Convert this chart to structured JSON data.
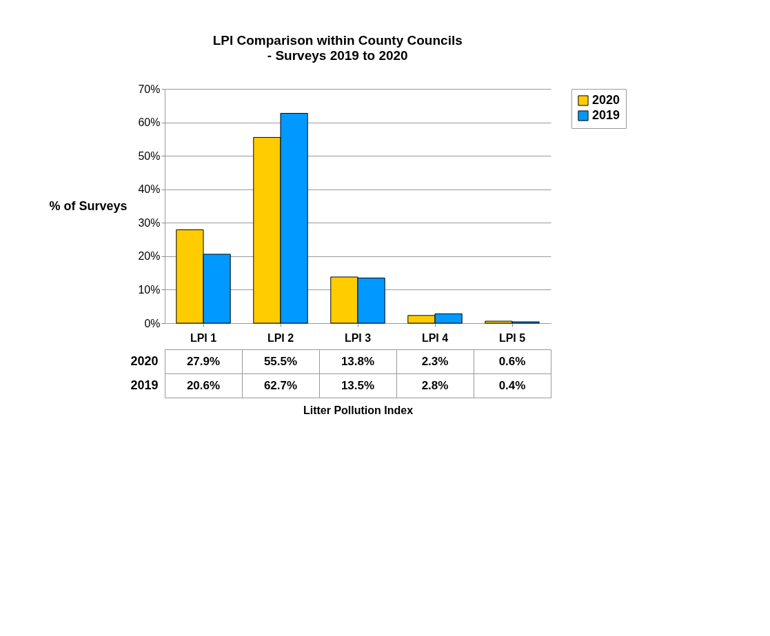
{
  "chart_data": {
    "type": "bar",
    "title": "LPI Comparison within County Councils",
    "subtitle": "- Surveys 2019 to 2020",
    "annotations": [
      "Litter Pollution Index"
    ],
    "ylabel": "% of Surveys",
    "categories": [
      "LPI 1",
      "LPI 2",
      "LPI 3",
      "LPI 4",
      "LPI 5"
    ],
    "series": [
      {
        "name": "2020",
        "color": "#ffcc00",
        "values": [
          27.9,
          55.5,
          13.8,
          2.3,
          0.6
        ],
        "value_labels": [
          "27.9%",
          "55.5%",
          "13.8%",
          "2.3%",
          "0.6%"
        ]
      },
      {
        "name": "2019",
        "color": "#0099ff",
        "values": [
          20.6,
          62.7,
          13.5,
          2.8,
          0.4
        ],
        "value_labels": [
          "20.6%",
          "62.7%",
          "13.5%",
          "2.8%",
          "0.4%"
        ]
      }
    ],
    "ylim": [
      0,
      70
    ],
    "yticks": [
      {
        "value": 0,
        "label": "0%"
      },
      {
        "value": 10,
        "label": "10%"
      },
      {
        "value": 20,
        "label": "20%"
      },
      {
        "value": 30,
        "label": "30%"
      },
      {
        "value": 40,
        "label": "40%"
      },
      {
        "value": 50,
        "label": "50%"
      },
      {
        "value": 60,
        "label": "60%"
      },
      {
        "value": 70,
        "label": "70%"
      }
    ],
    "grid": "y",
    "legend": "right"
  }
}
